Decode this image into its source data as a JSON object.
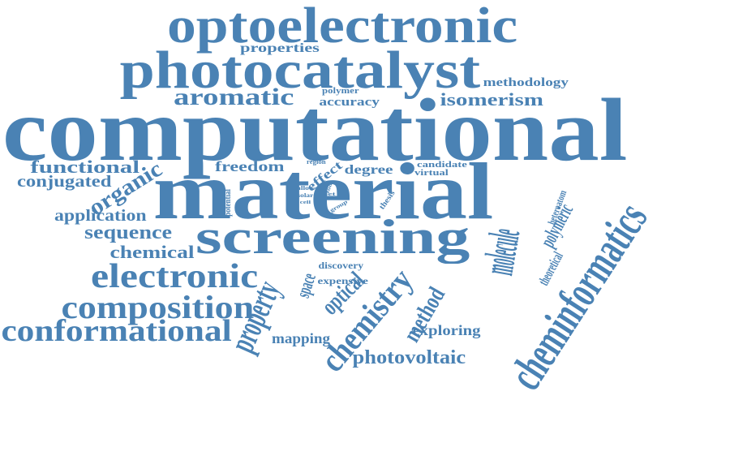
{
  "color": "#4a82b4",
  "words": [
    {
      "name": "word-optoelectronic",
      "text": "optoelectronic"
    },
    {
      "name": "word-properties",
      "text": "properties"
    },
    {
      "name": "word-photocatalyst",
      "text": "photocatalyst"
    },
    {
      "name": "word-methodology",
      "text": "methodology"
    },
    {
      "name": "word-polymer",
      "text": "polymer"
    },
    {
      "name": "word-aromatic",
      "text": "aromatic"
    },
    {
      "name": "word-accuracy",
      "text": "accuracy"
    },
    {
      "name": "word-isomerism",
      "text": "isomerism"
    },
    {
      "name": "word-computational",
      "text": "computational"
    },
    {
      "name": "word-functional",
      "text": "functional"
    },
    {
      "name": "word-freedom",
      "text": "freedom"
    },
    {
      "name": "word-region",
      "text": "region"
    },
    {
      "name": "word-candidate",
      "text": "candidate"
    },
    {
      "name": "word-degree",
      "text": "degree"
    },
    {
      "name": "word-virtual",
      "text": "virtual"
    },
    {
      "name": "word-conjugated",
      "text": "conjugated"
    },
    {
      "name": "word-effect",
      "text": "effect"
    },
    {
      "name": "word-material",
      "text": "material"
    },
    {
      "name": "word-organic",
      "text": "organic"
    },
    {
      "name": "word-allow",
      "text": "allow"
    },
    {
      "name": "word-solar",
      "text": "solar"
    },
    {
      "name": "word-cell",
      "text": "cell"
    },
    {
      "name": "word-potential",
      "text": "potential"
    },
    {
      "name": "word-tool",
      "text": "tool"
    },
    {
      "name": "word-set",
      "text": "set"
    },
    {
      "name": "word-group",
      "text": "group"
    },
    {
      "name": "word-thesis",
      "text": "thesis"
    },
    {
      "name": "word-heteroatom",
      "text": "heteroatom"
    },
    {
      "name": "word-application",
      "text": "application"
    },
    {
      "name": "word-sequence",
      "text": "sequence"
    },
    {
      "name": "word-screening",
      "text": "screening"
    },
    {
      "name": "word-molecule",
      "text": "molecule"
    },
    {
      "name": "word-polymeric",
      "text": "polymeric"
    },
    {
      "name": "word-cheminformatics",
      "text": "cheminformatics"
    },
    {
      "name": "word-chemical",
      "text": "chemical"
    },
    {
      "name": "word-discovery",
      "text": "discovery"
    },
    {
      "name": "word-theoretical",
      "text": "theoretical"
    },
    {
      "name": "word-electronic",
      "text": "electronic"
    },
    {
      "name": "word-expensive",
      "text": "expensive"
    },
    {
      "name": "word-property",
      "text": "property"
    },
    {
      "name": "word-space",
      "text": "space"
    },
    {
      "name": "word-optical",
      "text": "optical"
    },
    {
      "name": "word-chemistry",
      "text": "chemistry"
    },
    {
      "name": "word-method",
      "text": "method"
    },
    {
      "name": "word-composition",
      "text": "composition"
    },
    {
      "name": "word-conformational",
      "text": "conformational"
    },
    {
      "name": "word-mapping",
      "text": "mapping"
    },
    {
      "name": "word-exploring",
      "text": "exploring"
    },
    {
      "name": "word-photovoltaic",
      "text": "photovoltaic"
    }
  ]
}
